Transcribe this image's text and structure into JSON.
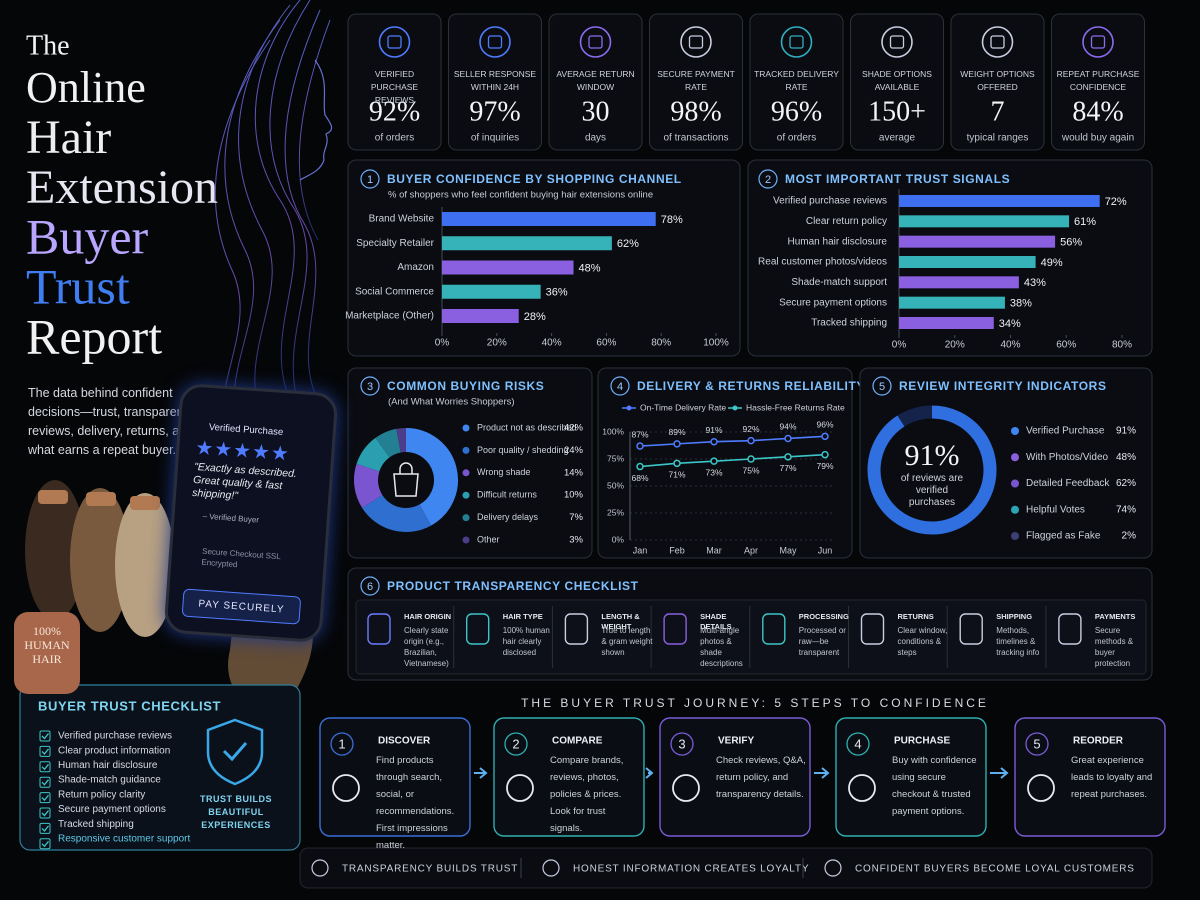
{
  "title": [
    "The",
    "Online",
    "Hair",
    "Extension",
    "Buyer",
    "Trust",
    "Report"
  ],
  "intro": "The data behind confident decisions—trust, transparency, reviews, delivery, returns, and what earns a repeat buyer.",
  "phone": {
    "badge": "Verified Purchase",
    "stars": "★★★★★",
    "quote": "\"Exactly as described. Great quality & fast shipping!\"",
    "author": "– Verified Buyer",
    "secure": "Secure Checkout SSL Encrypted",
    "button": "PAY SECURELY"
  },
  "tag": "100% HUMAN HAIR",
  "kpis": [
    {
      "label": "VERIFIED PURCHASE REVIEWS",
      "value": "92%",
      "sub": "of orders"
    },
    {
      "label": "SELLER RESPONSE WITHIN 24H",
      "value": "97%",
      "sub": "of inquiries"
    },
    {
      "label": "AVERAGE RETURN WINDOW",
      "value": "30",
      "sub": "days"
    },
    {
      "label": "SECURE PAYMENT RATE",
      "value": "98%",
      "sub": "of transactions"
    },
    {
      "label": "TRACKED DELIVERY RATE",
      "value": "96%",
      "sub": "of orders"
    },
    {
      "label": "SHADE OPTIONS AVAILABLE",
      "value": "150+",
      "sub": "average"
    },
    {
      "label": "WEIGHT OPTIONS OFFERED",
      "value": "7",
      "sub": "typical ranges"
    },
    {
      "label": "REPEAT PURCHASE CONFIDENCE",
      "value": "84%",
      "sub": "would buy again"
    }
  ],
  "chart_data": [
    {
      "type": "bar",
      "number": "1",
      "title": "BUYER CONFIDENCE BY SHOPPING CHANNEL",
      "subtitle": "% of shoppers who feel confident buying hair extensions online",
      "categories": [
        "Brand Website",
        "Specialty Retailer",
        "Amazon",
        "Social Commerce",
        "Marketplace (Other)"
      ],
      "values": [
        78,
        62,
        48,
        36,
        28
      ],
      "value_labels": [
        "78%",
        "62%",
        "48%",
        "36%",
        "28%"
      ],
      "colors": [
        "#3d6ff0",
        "#36b3b8",
        "#8a5fe0",
        "#36b3b8",
        "#8a5fe0"
      ],
      "xlim": [
        0,
        100
      ],
      "xticks": [
        {
          "value": 0,
          "label": "0%"
        },
        {
          "value": 20,
          "label": "20%"
        },
        {
          "value": 40,
          "label": "40%"
        },
        {
          "value": 60,
          "label": "60%"
        },
        {
          "value": 80,
          "label": "80%"
        },
        {
          "value": 100,
          "label": "100%"
        }
      ]
    },
    {
      "type": "bar",
      "number": "2",
      "title": "MOST IMPORTANT TRUST SIGNALS",
      "categories": [
        "Verified purchase reviews",
        "Clear return policy",
        "Human hair disclosure",
        "Real customer photos/videos",
        "Shade-match support",
        "Secure payment options",
        "Tracked shipping"
      ],
      "values": [
        72,
        61,
        56,
        49,
        43,
        38,
        34
      ],
      "value_labels": [
        "72%",
        "61%",
        "56%",
        "49%",
        "43%",
        "38%",
        "34%"
      ],
      "colors": [
        "#3d6ff0",
        "#36b3b8",
        "#8a5fe0",
        "#36b3b8",
        "#8a5fe0",
        "#36b3b8",
        "#8a5fe0"
      ],
      "xlim": [
        0,
        80
      ],
      "xticks": [
        {
          "value": 0,
          "label": "0%"
        },
        {
          "value": 20,
          "label": "20%"
        },
        {
          "value": 40,
          "label": "40%"
        },
        {
          "value": 60,
          "label": "60%"
        },
        {
          "value": 80,
          "label": "80%"
        }
      ]
    },
    {
      "type": "donut",
      "number": "3",
      "title": "COMMON BUYING RISKS",
      "subtitle": "(And What Worries Shoppers)",
      "categories": [
        "Product not as described",
        "Poor quality / shedding",
        "Wrong shade",
        "Difficult returns",
        "Delivery delays",
        "Other"
      ],
      "values": [
        42,
        24,
        14,
        10,
        7,
        3
      ],
      "value_labels": [
        "42%",
        "24%",
        "14%",
        "10%",
        "7%",
        "3%"
      ],
      "colors": [
        "#3f86f0",
        "#2f6fd0",
        "#7a55d0",
        "#2a9fb0",
        "#237f92",
        "#4b3d8a"
      ]
    },
    {
      "type": "line",
      "number": "4",
      "title": "DELIVERY & RETURNS RELIABILITY",
      "categories": [
        "Jan",
        "Feb",
        "Mar",
        "Apr",
        "May",
        "Jun"
      ],
      "series": [
        {
          "name": "On-Time Delivery Rate",
          "color": "#4f7cff",
          "values": [
            87,
            89,
            91,
            92,
            94,
            96
          ],
          "value_labels": [
            "87%",
            "89%",
            "91%",
            "92%",
            "94%",
            "96%"
          ]
        },
        {
          "name": "Hassle-Free Returns Rate",
          "color": "#3cc6c8",
          "values": [
            68,
            71,
            73,
            75,
            77,
            79
          ],
          "value_labels": [
            "68%",
            "71%",
            "73%",
            "75%",
            "77%",
            "79%"
          ]
        }
      ],
      "ylim": [
        0,
        100
      ],
      "yticks": [
        {
          "value": 0,
          "label": "0%"
        },
        {
          "value": 25,
          "label": "25%"
        },
        {
          "value": 50,
          "label": "50%"
        },
        {
          "value": 75,
          "label": "75%"
        },
        {
          "value": 100,
          "label": "100%"
        }
      ],
      "grid": true
    },
    {
      "type": "ring",
      "number": "5",
      "title": "REVIEW INTEGRITY INDICATORS",
      "center": {
        "value": 91,
        "label": "91%",
        "caption": "of reviews are verified purchases"
      },
      "rlim": [
        0,
        100
      ],
      "categories": [
        "Verified Purchase",
        "With Photos/Video",
        "Detailed Feedback",
        "Helpful Votes",
        "Flagged as Fake"
      ],
      "values": [
        91,
        48,
        62,
        74,
        2
      ],
      "value_labels": [
        "91%",
        "48%",
        "62%",
        "74%",
        "2%"
      ],
      "colors": [
        "#3f86f0",
        "#8a5fe0",
        "#7a55d0",
        "#2aa5b5",
        "#3a3f78"
      ]
    }
  ],
  "transparency": {
    "number": "6",
    "title": "PRODUCT TRANSPARENCY CHECKLIST",
    "items": [
      {
        "title": "HAIR ORIGIN",
        "text": "Clearly state origin (e.g., Brazilian, Vietnamese)"
      },
      {
        "title": "HAIR TYPE",
        "text": "100% human hair clearly disclosed"
      },
      {
        "title": "LENGTH & WEIGHT",
        "text": "True to length & gram weight shown"
      },
      {
        "title": "SHADE DETAILS",
        "text": "Multi-angle photos & shade descriptions"
      },
      {
        "title": "PROCESSING",
        "text": "Processed or raw—be transparent"
      },
      {
        "title": "RETURNS",
        "text": "Clear window, conditions & steps"
      },
      {
        "title": "SHIPPING",
        "text": "Methods, timelines & tracking info"
      },
      {
        "title": "PAYMENTS",
        "text": "Secure methods & buyer protection"
      }
    ]
  },
  "checklist": {
    "title": "BUYER TRUST CHECKLIST",
    "items": [
      "Verified purchase reviews",
      "Clear product information",
      "Human hair disclosure",
      "Shade-match guidance",
      "Return policy clarity",
      "Secure payment options",
      "Tracked shipping",
      "Responsive customer support"
    ],
    "badge": "TRUST BUILDS BEAUTIFUL EXPERIENCES"
  },
  "journey": {
    "title": "THE BUYER TRUST JOURNEY: 5 STEPS TO CONFIDENCE",
    "steps": [
      {
        "number": "1",
        "title": "DISCOVER",
        "text": "Find products through search, social, or recommendations. First impressions matter."
      },
      {
        "number": "2",
        "title": "COMPARE",
        "text": "Compare brands, reviews, photos, policies & prices. Look for trust signals."
      },
      {
        "number": "3",
        "title": "VERIFY",
        "text": "Check reviews, Q&A, return policy, and transparency details."
      },
      {
        "number": "4",
        "title": "PURCHASE",
        "text": "Buy with confidence using secure checkout & trusted payment options."
      },
      {
        "number": "5",
        "title": "REORDER",
        "text": "Great experience leads to loyalty and repeat purchases."
      }
    ]
  },
  "footer": [
    "TRANSPARENCY BUILDS TRUST",
    "HONEST INFORMATION CREATES LOYALTY",
    "CONFIDENT BUYERS BECOME LOYAL CUSTOMERS"
  ]
}
